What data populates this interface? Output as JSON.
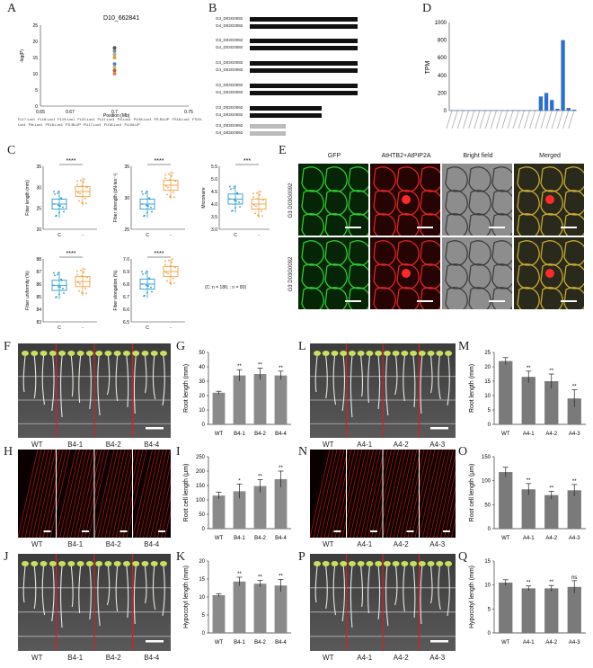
{
  "panels": {
    "A": {
      "letter": "A",
      "title": "D10_662841",
      "ylabel": "-log(P)",
      "xlabel": "Position (Mb)",
      "xticks": [
        "0.65",
        "0.67",
        "0.7",
        "0.75"
      ],
      "yticks": [
        "0",
        "5",
        "10",
        "15",
        "20",
        "25"
      ],
      "legend": [
        "FL17-Loc1",
        "FL18-Loc1",
        "FL19-Loc1",
        "FL20-Loc1",
        "FL21-Loc1",
        "FS-Loc1",
        "FU18-Loc1",
        "FE-BLUP",
        "FS18-Loc1",
        "FS19-Loc1",
        "FM-Loc1",
        "FE18-Loc1",
        "FS-BLUP",
        "FU17-Loc1",
        "FU18-Loc1",
        "FU-BLUP"
      ]
    },
    "B": {
      "letter": "B",
      "rows": [
        "G3_D03G0092",
        "G4_D03G0092"
      ]
    },
    "C": {
      "letter": "C",
      "note": "(C: n = 186; : n = 80)"
    },
    "D": {
      "letter": "D",
      "ylabel": "TPM",
      "yticks": [
        "0",
        "200",
        "400",
        "600",
        "800",
        "1000"
      ]
    },
    "E": {
      "letter": "E",
      "columns": [
        "GFP",
        "AtHTB2+AtPIP2A",
        "Bright field",
        "Merged"
      ],
      "rows": [
        "G3 D03G0092",
        "G3 D03G0092"
      ]
    },
    "F": {
      "letter": "F",
      "labels": [
        "WT",
        "B4-1",
        "B4-2",
        "B4-4"
      ]
    },
    "G": {
      "letter": "G",
      "ylabel": "Root length (mm)"
    },
    "H": {
      "letter": "H",
      "labels": [
        "WT",
        "B4-1",
        "B4-2",
        "B4-4"
      ]
    },
    "I": {
      "letter": "I",
      "ylabel": "Root cell length (μm)"
    },
    "J": {
      "letter": "J",
      "labels": [
        "WT",
        "B4-1",
        "B4-2",
        "B4-4"
      ]
    },
    "K": {
      "letter": "K",
      "ylabel": "Hypocotyl length (mm)"
    },
    "L": {
      "letter": "L",
      "labels": [
        "WT",
        "A4-1",
        "A4-2",
        "A4-3"
      ]
    },
    "M": {
      "letter": "M",
      "ylabel": "Root length (mm)"
    },
    "N": {
      "letter": "N",
      "labels": [
        "WT",
        "A4-1",
        "A4-2",
        "A4-3"
      ]
    },
    "O": {
      "letter": "O",
      "ylabel": "Root cell length (μm)"
    },
    "P": {
      "letter": "P",
      "labels": [
        "WT",
        "A4-1",
        "A4-2",
        "A4-3"
      ]
    },
    "Q": {
      "letter": "Q",
      "ylabel": "Hypocotyl length (mm)"
    }
  },
  "colors": {
    "boxBlue": "#2a9bd0",
    "boxOrange": "#f0a040",
    "barBlue": "#2c6fcf",
    "barGray": "#8a8a8a",
    "redLine": "#d42020"
  },
  "chart_data": [
    {
      "id": "A",
      "type": "scatter",
      "x": [
        0.7,
        0.7,
        0.7,
        0.7,
        0.7,
        0.7,
        0.7,
        0.7
      ],
      "y": [
        18,
        17,
        16,
        15,
        13,
        12,
        11,
        10
      ],
      "xlim": [
        0.65,
        0.75
      ],
      "ylim": [
        0,
        25
      ]
    },
    {
      "id": "C1",
      "type": "box",
      "ylabel": "Fiber length (mm)",
      "categories": [
        "C",
        "-"
      ],
      "values": [
        26,
        29
      ],
      "ylim": [
        20,
        35
      ],
      "yticks": [
        "20",
        "25",
        "30",
        "35"
      ],
      "sig": "****"
    },
    {
      "id": "C2",
      "type": "box",
      "ylabel": "Fiber strength (cN·tex⁻¹)",
      "categories": [
        "C",
        "-"
      ],
      "values": [
        29,
        32
      ],
      "ylim": [
        25,
        35
      ],
      "yticks": [
        "25",
        "30",
        "35"
      ],
      "sig": "****"
    },
    {
      "id": "C3",
      "type": "box",
      "ylabel": "Micronaire",
      "categories": [
        "C",
        "-"
      ],
      "values": [
        4.2,
        4.0
      ],
      "ylim": [
        3.0,
        5.5
      ],
      "yticks": [
        "3.0",
        "3.5",
        "4.0",
        "4.5",
        "5.0",
        "5.5"
      ],
      "sig": "***"
    },
    {
      "id": "C4",
      "type": "box",
      "ylabel": "Fiber uniformity (%)",
      "categories": [
        "C",
        "-"
      ],
      "values": [
        85.9,
        86.2
      ],
      "ylim": [
        83,
        88
      ],
      "yticks": [
        "83",
        "84",
        "85",
        "86",
        "87",
        "88"
      ],
      "sig": "****"
    },
    {
      "id": "C5",
      "type": "box",
      "ylabel": "Fiber elongation (%)",
      "categories": [
        "C",
        "-"
      ],
      "values": [
        6.8,
        6.9
      ],
      "ylim": [
        6.5,
        7.0
      ],
      "yticks": [
        "6.5",
        "6.6",
        "6.7",
        "6.8",
        "6.9",
        "7.0"
      ],
      "sig": "****"
    },
    {
      "id": "D",
      "type": "bar",
      "values": [
        5,
        5,
        5,
        5,
        5,
        5,
        5,
        5,
        5,
        5,
        5,
        5,
        5,
        5,
        5,
        5,
        160,
        200,
        120,
        20,
        800,
        30,
        10
      ],
      "ylim": [
        0,
        1000
      ]
    },
    {
      "id": "G",
      "type": "bar",
      "categories": [
        "WT",
        "B4-1",
        "B4-2",
        "B4-4"
      ],
      "values": [
        22,
        34,
        35,
        34
      ],
      "errors": [
        1,
        4,
        4,
        3
      ],
      "sig": [
        "",
        "**",
        "**",
        "**"
      ],
      "ylim": [
        0,
        50
      ],
      "yticks": [
        "0",
        "10",
        "20",
        "30",
        "40",
        "50"
      ]
    },
    {
      "id": "I",
      "type": "bar",
      "categories": [
        "WT",
        "B4-1",
        "B4-2",
        "B4-4"
      ],
      "values": [
        115,
        130,
        148,
        172
      ],
      "errors": [
        12,
        25,
        22,
        28
      ],
      "sig": [
        "",
        "*",
        "**",
        "**"
      ],
      "ylim": [
        0,
        250
      ],
      "yticks": [
        "0",
        "50",
        "100",
        "150",
        "200",
        "250"
      ]
    },
    {
      "id": "K",
      "type": "bar",
      "categories": [
        "WT",
        "B4-1",
        "B4-2",
        "B4-4"
      ],
      "values": [
        10.5,
        14.3,
        13.7,
        13.2
      ],
      "errors": [
        0.4,
        1.2,
        0.9,
        1.7
      ],
      "sig": [
        "",
        "**",
        "**",
        "**"
      ],
      "ylim": [
        0,
        20
      ],
      "yticks": [
        "0",
        "5",
        "10",
        "15",
        "20"
      ]
    },
    {
      "id": "M",
      "type": "bar",
      "categories": [
        "WT",
        "A4-1",
        "A4-2",
        "A4-3"
      ],
      "values": [
        22,
        16.5,
        15,
        9
      ],
      "errors": [
        1.2,
        2,
        2.5,
        3
      ],
      "sig": [
        "",
        "**",
        "**",
        "**"
      ],
      "ylim": [
        0,
        25
      ],
      "yticks": [
        "0",
        "5",
        "10",
        "15",
        "20",
        "25"
      ]
    },
    {
      "id": "O",
      "type": "bar",
      "categories": [
        "WT",
        "A4-1",
        "A4-2",
        "A4-3"
      ],
      "values": [
        118,
        82,
        70,
        80
      ],
      "errors": [
        10,
        12,
        8,
        12
      ],
      "sig": [
        "",
        "**",
        "**",
        "**"
      ],
      "ylim": [
        0,
        150
      ],
      "yticks": [
        "0",
        "50",
        "100",
        "150"
      ]
    },
    {
      "id": "Q",
      "type": "bar",
      "categories": [
        "WT",
        "A4-1",
        "A4-2",
        "A4-3"
      ],
      "values": [
        10.5,
        9.3,
        9.3,
        9.6
      ],
      "errors": [
        0.6,
        0.5,
        0.6,
        1.3
      ],
      "sig": [
        "",
        "**",
        "**",
        "ns"
      ],
      "ylim": [
        0,
        15
      ],
      "yticks": [
        "0",
        "5",
        "10",
        "15"
      ]
    }
  ]
}
